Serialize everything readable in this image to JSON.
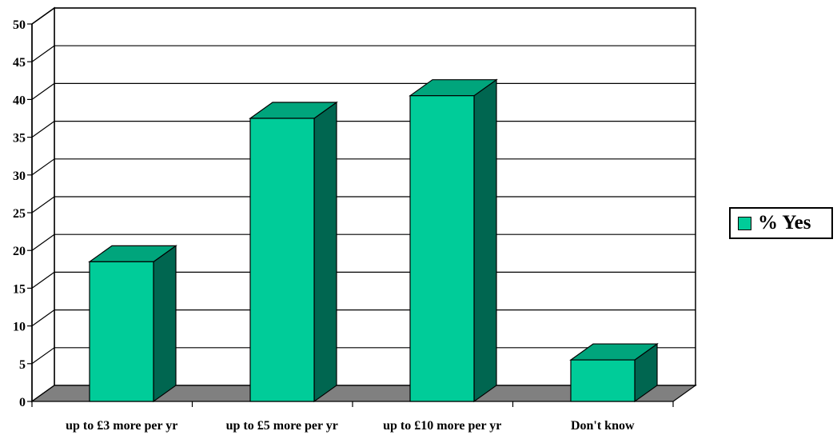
{
  "chart_data": {
    "type": "bar",
    "title": "",
    "xlabel": "",
    "ylabel": "",
    "categories": [
      "up to £3 more per yr",
      "up to £5 more per yr",
      "up to £10 more per yr",
      "Don't know"
    ],
    "series": [
      {
        "name": "% Yes",
        "values": [
          18.5,
          37.5,
          40.5,
          5.5
        ]
      }
    ],
    "ylim": [
      0,
      50
    ],
    "yticks": [
      "0",
      "5",
      "10",
      "15",
      "20",
      "25",
      "30",
      "35",
      "40",
      "45",
      "50"
    ],
    "grid": true,
    "style": "3d-column",
    "legend_position": "right",
    "colors": {
      "bar_front": "#00CC99",
      "bar_side": "#006650",
      "bar_top": "#00A57C",
      "floor": "#808080"
    }
  }
}
